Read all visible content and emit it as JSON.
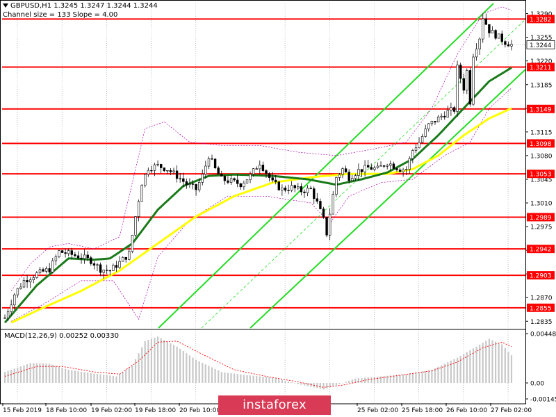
{
  "header": {
    "symbol_line": "GBPUSD,H1  1.3245 1.3247 1.3244 1.3244",
    "channel_line": "Channel size = 133 Slope = 4.00"
  },
  "macd": {
    "label": "MACD(12,26,9) 0.00252 0.00330",
    "ticks": [
      "0.00448",
      "0.00",
      "-0.00145"
    ]
  },
  "watermark": "instaforex",
  "colors": {
    "resistance": "#ff0000",
    "ma_fast": "#1a7a1a",
    "ma_slow": "#ffff00",
    "channel": "#22dd22",
    "envelope": "#aa00aa",
    "histogram": "#c8c8c8",
    "signal": "#ff0000",
    "price_tag": "#ff0000"
  },
  "chart_data": {
    "type": "candlestick",
    "y_ticks": [
      "1.3290",
      "1.3255",
      "1.3220",
      "1.3185",
      "1.3150",
      "1.3115",
      "1.3080",
      "1.3045",
      "1.3010",
      "1.2975",
      "1.2940",
      "1.2905",
      "1.2870",
      "1.2835"
    ],
    "ylim": [
      1.2825,
      1.3305
    ],
    "levels": [
      "1.3282",
      "1.3211",
      "1.3149",
      "1.3098",
      "1.3053",
      "1.2989",
      "1.2942",
      "1.2903",
      "1.2855"
    ],
    "current_price": "1.3244",
    "x_labels": [
      "15 Feb 2019",
      "18 Feb 10:00",
      "19 Feb 02:00",
      "19 Feb 18:00",
      "20 Feb 10:00",
      "25 Feb 02:00",
      "25 Feb 18:00",
      "26 Feb 10:00",
      "27 Feb 02:00"
    ],
    "x_label_hidden": "21 Feb 02:00 — 22 Feb 10:00",
    "n_bars": 160,
    "close_keypoints": [
      [
        0,
        1.284
      ],
      [
        3,
        1.2875
      ],
      [
        6,
        1.2895
      ],
      [
        10,
        1.2905
      ],
      [
        14,
        1.2912
      ],
      [
        17,
        1.2938
      ],
      [
        20,
        1.2935
      ],
      [
        24,
        1.293
      ],
      [
        27,
        1.2925
      ],
      [
        30,
        1.2912
      ],
      [
        33,
        1.291
      ],
      [
        36,
        1.2922
      ],
      [
        39,
        1.2935
      ],
      [
        41,
        1.299
      ],
      [
        43,
        1.304
      ],
      [
        45,
        1.3062
      ],
      [
        48,
        1.3065
      ],
      [
        51,
        1.306
      ],
      [
        54,
        1.305
      ],
      [
        57,
        1.3038
      ],
      [
        60,
        1.303
      ],
      [
        62,
        1.305
      ],
      [
        64,
        1.308
      ],
      [
        66,
        1.306
      ],
      [
        68,
        1.3045
      ],
      [
        71,
        1.3042
      ],
      [
        74,
        1.3038
      ],
      [
        77,
        1.305
      ],
      [
        80,
        1.307
      ],
      [
        82,
        1.3055
      ],
      [
        84,
        1.304
      ],
      [
        87,
        1.303
      ],
      [
        90,
        1.3033
      ],
      [
        93,
        1.3028
      ],
      [
        96,
        1.303
      ],
      [
        98,
        1.301
      ],
      [
        100,
        1.2985
      ],
      [
        101,
        1.2965
      ],
      [
        102,
        1.2995
      ],
      [
        104,
        1.3048
      ],
      [
        106,
        1.306
      ],
      [
        108,
        1.3048
      ],
      [
        111,
        1.3058
      ],
      [
        114,
        1.3062
      ],
      [
        117,
        1.306
      ],
      [
        120,
        1.307
      ],
      [
        122,
        1.3065
      ],
      [
        124,
        1.306
      ],
      [
        126,
        1.306
      ],
      [
        128,
        1.3088
      ],
      [
        130,
        1.31
      ],
      [
        133,
        1.3125
      ],
      [
        136,
        1.3135
      ],
      [
        139,
        1.3145
      ],
      [
        141,
        1.3148
      ],
      [
        142,
        1.321
      ],
      [
        144,
        1.318
      ],
      [
        145,
        1.3205
      ],
      [
        146,
        1.316
      ],
      [
        147,
        1.323
      ],
      [
        149,
        1.3255
      ],
      [
        150,
        1.3285
      ],
      [
        152,
        1.3265
      ],
      [
        155,
        1.3255
      ],
      [
        157,
        1.3248
      ],
      [
        159,
        1.3244
      ]
    ],
    "ma_fast_keypoints": [
      [
        0,
        1.2833
      ],
      [
        10,
        1.2888
      ],
      [
        20,
        1.2928
      ],
      [
        28,
        1.2926
      ],
      [
        33,
        1.2928
      ],
      [
        40,
        1.295
      ],
      [
        48,
        1.3
      ],
      [
        56,
        1.3035
      ],
      [
        64,
        1.305
      ],
      [
        72,
        1.3052
      ],
      [
        84,
        1.305
      ],
      [
        95,
        1.3045
      ],
      [
        104,
        1.3037
      ],
      [
        112,
        1.3045
      ],
      [
        120,
        1.3055
      ],
      [
        128,
        1.3075
      ],
      [
        136,
        1.311
      ],
      [
        144,
        1.315
      ],
      [
        152,
        1.319
      ],
      [
        159,
        1.321
      ]
    ],
    "ma_slow_keypoints": [
      [
        2,
        1.2833
      ],
      [
        12,
        1.2855
      ],
      [
        24,
        1.288
      ],
      [
        36,
        1.291
      ],
      [
        48,
        1.295
      ],
      [
        60,
        1.299
      ],
      [
        72,
        1.302
      ],
      [
        84,
        1.304
      ],
      [
        96,
        1.3048
      ],
      [
        108,
        1.3053
      ],
      [
        120,
        1.3053
      ],
      [
        128,
        1.306
      ],
      [
        136,
        1.308
      ],
      [
        144,
        1.311
      ],
      [
        152,
        1.3135
      ],
      [
        159,
        1.315
      ]
    ],
    "env_upper_keypoints": [
      [
        2,
        1.288
      ],
      [
        8,
        1.292
      ],
      [
        14,
        1.2945
      ],
      [
        20,
        1.295
      ],
      [
        28,
        1.2942
      ],
      [
        36,
        1.296
      ],
      [
        44,
        1.312
      ],
      [
        50,
        1.313
      ],
      [
        58,
        1.31
      ],
      [
        68,
        1.3095
      ],
      [
        80,
        1.3095
      ],
      [
        92,
        1.3085
      ],
      [
        104,
        1.308
      ],
      [
        116,
        1.309
      ],
      [
        126,
        1.31
      ],
      [
        134,
        1.315
      ],
      [
        142,
        1.323
      ],
      [
        150,
        1.329
      ],
      [
        156,
        1.33
      ],
      [
        159,
        1.3295
      ]
    ],
    "env_lower_keypoints": [
      [
        2,
        1.2835
      ],
      [
        12,
        1.286
      ],
      [
        24,
        1.2895
      ],
      [
        34,
        1.2895
      ],
      [
        42,
        1.2838
      ],
      [
        48,
        1.293
      ],
      [
        58,
        1.2985
      ],
      [
        70,
        1.302
      ],
      [
        82,
        1.302
      ],
      [
        96,
        1.301
      ],
      [
        102,
        1.298
      ],
      [
        108,
        1.302
      ],
      [
        118,
        1.304
      ],
      [
        128,
        1.3045
      ],
      [
        138,
        1.308
      ],
      [
        146,
        1.31
      ],
      [
        152,
        1.315
      ],
      [
        159,
        1.318
      ]
    ],
    "macd_hist_keypoints": [
      [
        0,
        0.001
      ],
      [
        8,
        0.0018
      ],
      [
        14,
        0.00175
      ],
      [
        20,
        0.0012
      ],
      [
        28,
        0.00085
      ],
      [
        35,
        0.0006
      ],
      [
        40,
        0.0016
      ],
      [
        44,
        0.0038
      ],
      [
        48,
        0.0042
      ],
      [
        54,
        0.0033
      ],
      [
        60,
        0.0021
      ],
      [
        68,
        0.001
      ],
      [
        76,
        0.0007
      ],
      [
        84,
        0.0005
      ],
      [
        92,
        -0.0001
      ],
      [
        100,
        -0.0006
      ],
      [
        104,
        -0.0002
      ],
      [
        110,
        0.0004
      ],
      [
        118,
        0.0006
      ],
      [
        126,
        0.0008
      ],
      [
        134,
        0.0012
      ],
      [
        142,
        0.0023
      ],
      [
        148,
        0.0033
      ],
      [
        152,
        0.004
      ],
      [
        156,
        0.0035
      ],
      [
        159,
        0.00252
      ]
    ],
    "macd_signal_keypoints": [
      [
        0,
        0.0006
      ],
      [
        10,
        0.0015
      ],
      [
        18,
        0.0015
      ],
      [
        28,
        0.001
      ],
      [
        36,
        0.0008
      ],
      [
        42,
        0.002
      ],
      [
        48,
        0.0037
      ],
      [
        54,
        0.0038
      ],
      [
        62,
        0.0026
      ],
      [
        72,
        0.0012
      ],
      [
        82,
        0.0006
      ],
      [
        92,
        0.0001
      ],
      [
        100,
        -0.0004
      ],
      [
        106,
        -0.0002
      ],
      [
        114,
        0.0003
      ],
      [
        124,
        0.0007
      ],
      [
        134,
        0.0011
      ],
      [
        142,
        0.0019
      ],
      [
        150,
        0.0032
      ],
      [
        156,
        0.0037
      ],
      [
        159,
        0.0033
      ]
    ],
    "macd_ylim": [
      -0.00145,
      0.00448
    ]
  }
}
